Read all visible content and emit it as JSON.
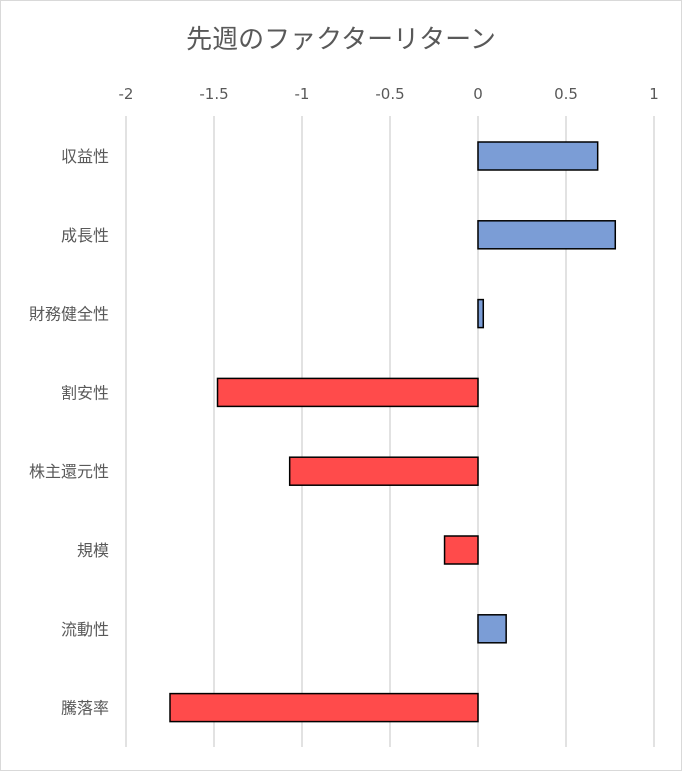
{
  "chart_data": {
    "type": "bar",
    "orientation": "horizontal",
    "title": "先週のファクターリターン",
    "xlabel": "",
    "ylabel": "",
    "xlim": [
      -2,
      1
    ],
    "x_ticks": [
      "-2",
      "-1.5",
      "-1",
      "-0.5",
      "0",
      "0.5",
      "1"
    ],
    "x_tick_values": [
      -2,
      -1.5,
      -1,
      -0.5,
      0,
      0.5,
      1
    ],
    "x_axis_position": "top",
    "grid": true,
    "legend": "none",
    "categories": [
      "収益性",
      "成長性",
      "財務健全性",
      "割安性",
      "株主還元性",
      "規模",
      "流動性",
      "騰落率"
    ],
    "values": [
      0.68,
      0.78,
      0.03,
      -1.48,
      -1.07,
      -0.19,
      0.16,
      -1.75
    ],
    "colors": {
      "positive": "#7b9dd6",
      "negative": "#ff4b4b",
      "grid": "#d9d9d9",
      "text": "#595959"
    }
  }
}
